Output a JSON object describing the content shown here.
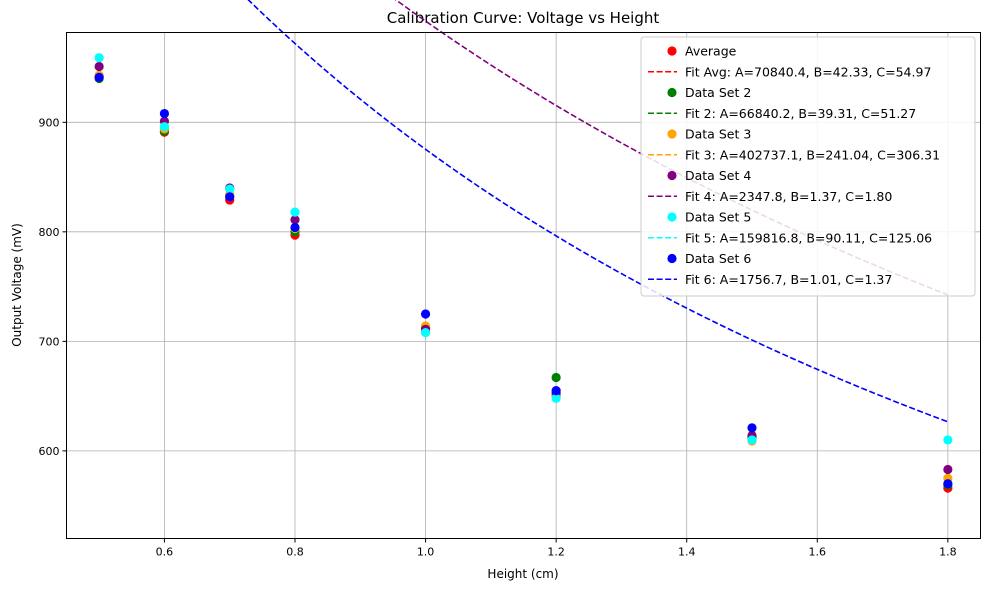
{
  "chart_data": {
    "type": "scatter",
    "title": "Calibration Curve: Voltage vs Height",
    "xlabel": "Height (cm)",
    "ylabel": "Output Voltage (mV)",
    "xlim": [
      0.45,
      1.85
    ],
    "ylim": [
      520,
      982
    ],
    "xticks": [
      0.6,
      0.8,
      1.0,
      1.2,
      1.4,
      1.6,
      1.8
    ],
    "xtick_labels": [
      "0.6",
      "0.8",
      "1.0",
      "1.2",
      "1.4",
      "1.6",
      "1.8"
    ],
    "yticks": [
      600,
      700,
      800,
      900
    ],
    "ytick_labels": [
      "600",
      "700",
      "800",
      "900"
    ],
    "grid": true,
    "legend_position": "top-right",
    "fit_model": "A/(x+B)+C",
    "x": [
      0.5,
      0.6,
      0.7,
      0.8,
      1.0,
      1.2,
      1.5,
      1.8
    ],
    "series": [
      {
        "name": "Average",
        "fit_name": "Fit Avg: A=70840.4, B=42.33, C=54.97",
        "color": "#ff0000",
        "values": [
          942,
          891,
          829,
          797,
          713,
          651,
          613,
          566
        ],
        "fit": {
          "A": 70840.4,
          "B": 42.33,
          "C": 54.97
        }
      },
      {
        "name": "Data Set 2",
        "fit_name": "Fit 2: A=66840.2, B=39.31, C=51.27",
        "color": "#008000",
        "values": [
          940,
          892,
          832,
          800,
          712,
          667,
          612,
          569
        ],
        "fit": {
          "A": 66840.2,
          "B": 39.31,
          "C": 51.27
        }
      },
      {
        "name": "Data Set 3",
        "fit_name": "Fit 3: A=402737.1, B=241.04, C=306.31",
        "color": "#ffa500",
        "values": [
          943,
          894,
          834,
          803,
          714,
          652,
          609,
          575
        ],
        "fit": {
          "A": 402737.1,
          "B": 241.04,
          "C": 306.31
        }
      },
      {
        "name": "Data Set 4",
        "fit_name": "Fit 4: A=2347.8, B=1.37, C=1.80",
        "color": "#800080",
        "values": [
          951,
          901,
          840,
          811,
          711,
          653,
          614,
          583
        ],
        "fit": {
          "A": 2347.8,
          "B": 1.37,
          "C": 1.8
        }
      },
      {
        "name": "Data Set 5",
        "fit_name": "Fit 5: A=159816.8, B=90.11, C=125.06",
        "color": "#00ffff",
        "values": [
          959,
          896,
          839,
          818,
          708,
          648,
          610,
          610
        ],
        "fit": {
          "A": 159816.8,
          "B": 90.11,
          "C": 125.06
        }
      },
      {
        "name": "Data Set 6",
        "fit_name": "Fit 6: A=1756.7, B=1.01, C=1.37",
        "color": "#0000ff",
        "values": [
          941,
          908,
          832,
          804,
          725,
          655,
          621,
          570
        ],
        "fit": {
          "A": 1756.7,
          "B": 1.01,
          "C": 1.37
        }
      }
    ]
  }
}
